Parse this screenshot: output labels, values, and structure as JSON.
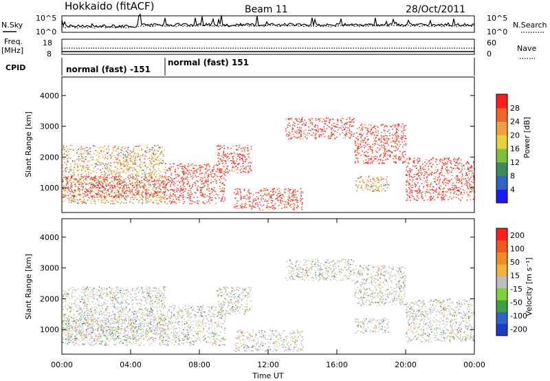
{
  "header": {
    "title": "Hokkaido (fitACF)",
    "beam": "Beam 11",
    "date": "28/Oct/2011"
  },
  "strips": {
    "nsky_label": "N.Sky",
    "nsky_ticks": [
      "10^5",
      "10^0"
    ],
    "nsky_right_ticks": [
      "10^5",
      "10^0"
    ],
    "nsearch_label": "N.Search",
    "freq_label_1": "Freq.",
    "freq_label_2": "[MHz]",
    "freq_ticks": [
      "18",
      "8"
    ],
    "nave_ticks": [
      "60",
      "0"
    ],
    "nave_label": "Nave",
    "cpid_label": "CPID",
    "cpid_segments": [
      {
        "label": "normal (fast) -151",
        "start": "00:00",
        "end": "06:00"
      },
      {
        "label": "normal (fast) 151",
        "start": "06:00",
        "end": "24:00"
      }
    ]
  },
  "chart_data": [
    {
      "type": "heatmap",
      "name": "power",
      "ylabel": "Slant Range [km]",
      "y_ticks": [
        "1000",
        "2000",
        "3000",
        "4000"
      ],
      "ylim": [
        200,
        4600
      ],
      "colorbar_label": "Power [dB]",
      "colorbar_ticks": [
        "4",
        "8",
        "12",
        "16",
        "20",
        "24",
        "28"
      ],
      "colorbar_colors": [
        "#1a1aff",
        "#2f64c8",
        "#3c8c5a",
        "#7fbf3f",
        "#e6d23c",
        "#f0a03c",
        "#f06428",
        "#ff1e1e"
      ],
      "regions": [
        {
          "t0": 0,
          "t1": 6,
          "r0": 500,
          "r1": 2400,
          "level": "mid"
        },
        {
          "t0": 0,
          "t1": 6,
          "r0": 700,
          "r1": 1400,
          "level": "high"
        },
        {
          "t0": 6,
          "t1": 9.5,
          "r0": 500,
          "r1": 1800,
          "level": "high"
        },
        {
          "t0": 9,
          "t1": 11,
          "r0": 1500,
          "r1": 2400,
          "level": "high"
        },
        {
          "t0": 10,
          "t1": 14,
          "r0": 300,
          "r1": 1000,
          "level": "high"
        },
        {
          "t0": 13,
          "t1": 17,
          "r0": 2600,
          "r1": 3300,
          "level": "high"
        },
        {
          "t0": 17,
          "t1": 20,
          "r0": 1800,
          "r1": 3100,
          "level": "high"
        },
        {
          "t0": 20,
          "t1": 24,
          "r0": 600,
          "r1": 2000,
          "level": "high"
        },
        {
          "t0": 17,
          "t1": 19,
          "r0": 900,
          "r1": 1400,
          "level": "mid"
        }
      ]
    },
    {
      "type": "heatmap",
      "name": "velocity",
      "ylabel": "Slant Range [km]",
      "y_ticks": [
        "1000",
        "2000",
        "3000",
        "4000"
      ],
      "ylim": [
        200,
        4600
      ],
      "colorbar_label": "Velocity [m s⁻¹]",
      "colorbar_ticks": [
        "200",
        "100",
        "50",
        "15",
        "-15",
        "-50",
        "-100",
        "-200"
      ],
      "colorbar_colors": [
        "#1e3cc8",
        "#2f64c8",
        "#3ca03c",
        "#7fd23c",
        "#bebebe",
        "#f0b43c",
        "#f08c28",
        "#f05a1e",
        "#ff1e1e"
      ],
      "xlabel": "Time UT",
      "x_ticks": [
        "00:00",
        "04:00",
        "08:00",
        "12:00",
        "16:00",
        "20:00",
        "00:00"
      ],
      "xlim": [
        0,
        24
      ]
    }
  ]
}
